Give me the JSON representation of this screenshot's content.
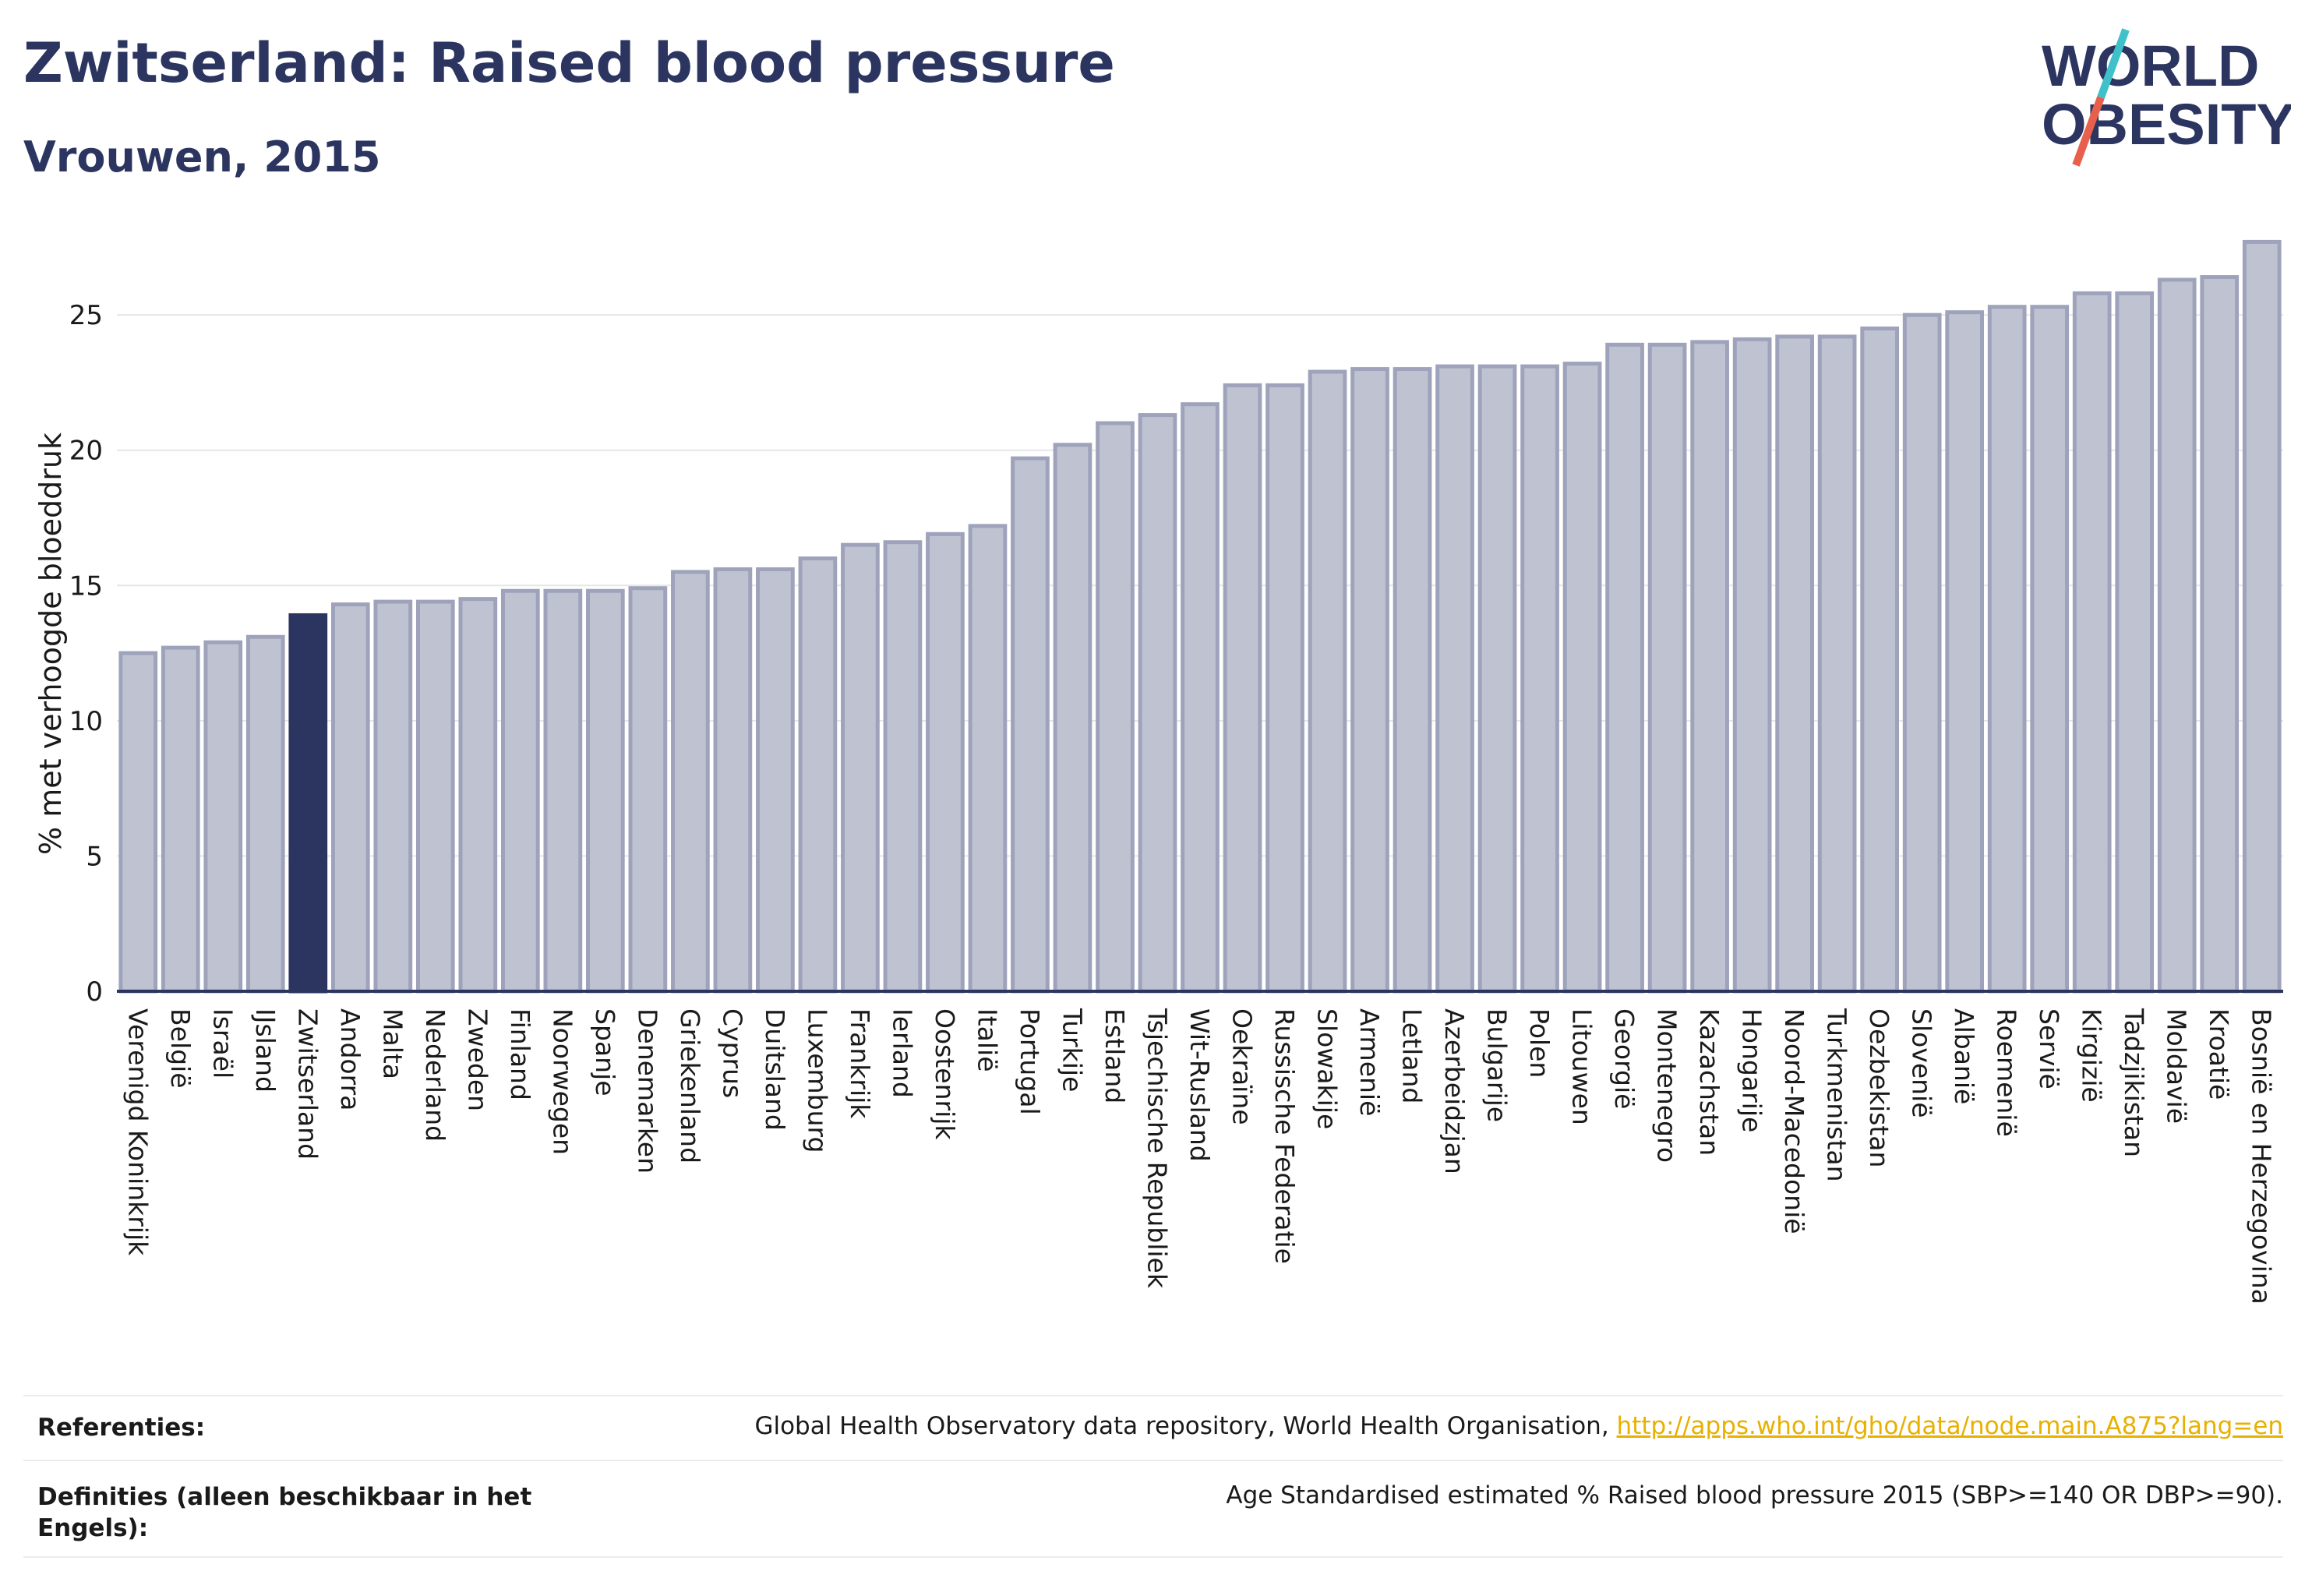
{
  "header": {
    "title": "Zwitserland: Raised blood pressure",
    "subtitle": "Vrouwen, 2015"
  },
  "logo": {
    "line1": "WORLD",
    "line2": "OBESITY",
    "colors": {
      "text": "#2b3560",
      "slash_red": "#e8604c",
      "slash_teal": "#3ec1c9"
    }
  },
  "colors": {
    "bar": "#bfc3d1",
    "bar_border": "#9ea3bb",
    "highlight": "#2b3560",
    "grid": "#e6e6e6",
    "axis": "#2b3560"
  },
  "chart_data": {
    "type": "bar",
    "ylabel": "% met verhoogde bloeddruk",
    "xlabel": "",
    "ylim": [
      0,
      28
    ],
    "yticks": [
      0,
      5,
      10,
      15,
      20,
      25
    ],
    "grid": true,
    "highlight": "Zwitserland",
    "categories": [
      "Verenigd Koninkrijk",
      "België",
      "Israël",
      "IJsland",
      "Zwitserland",
      "Andorra",
      "Malta",
      "Nederland",
      "Zweden",
      "Finland",
      "Noorwegen",
      "Spanje",
      "Denemarken",
      "Griekenland",
      "Cyprus",
      "Duitsland",
      "Luxemburg",
      "Frankrijk",
      "Ierland",
      "Oostenrijk",
      "Italië",
      "Portugal",
      "Turkije",
      "Estland",
      "Tsjechische Republiek",
      "Wit-Rusland",
      "Oekraïne",
      "Russische Federatie",
      "Slowakije",
      "Armenië",
      "Letland",
      "Azerbeidzjan",
      "Bulgarije",
      "Polen",
      "Litouwen",
      "Georgië",
      "Montenegro",
      "Kazachstan",
      "Hongarije",
      "Noord-Macedonië",
      "Turkmenistan",
      "Oezbekistan",
      "Slovenië",
      "Albanië",
      "Roemenië",
      "Servië",
      "Kirgizië",
      "Tadzjikistan",
      "Moldavië",
      "Kroatië",
      "Bosnië en Herzegovina"
    ],
    "values": [
      12.5,
      12.7,
      12.9,
      13.1,
      13.9,
      14.3,
      14.4,
      14.4,
      14.5,
      14.8,
      14.8,
      14.8,
      14.9,
      15.5,
      15.6,
      15.6,
      16.0,
      16.5,
      16.6,
      16.9,
      17.2,
      19.7,
      20.2,
      21.0,
      21.3,
      21.7,
      22.4,
      22.4,
      22.9,
      23.0,
      23.0,
      23.1,
      23.1,
      23.1,
      23.2,
      23.9,
      23.9,
      24.0,
      24.1,
      24.2,
      24.2,
      24.5,
      25.0,
      25.1,
      25.3,
      25.3,
      25.8,
      25.8,
      26.3,
      26.4,
      27.7
    ]
  },
  "footer": {
    "references_label": "Referenties:",
    "references_text": "Global Health Observatory data repository, World Health Organisation, ",
    "references_link": "http://apps.who.int/gho/data/node.main.A875?lang=en",
    "definitions_label": "Definities (alleen beschikbaar in het Engels):",
    "definitions_text": "Age Standardised estimated % Raised blood pressure 2015 (SBP>=140 OR DBP>=90)."
  }
}
